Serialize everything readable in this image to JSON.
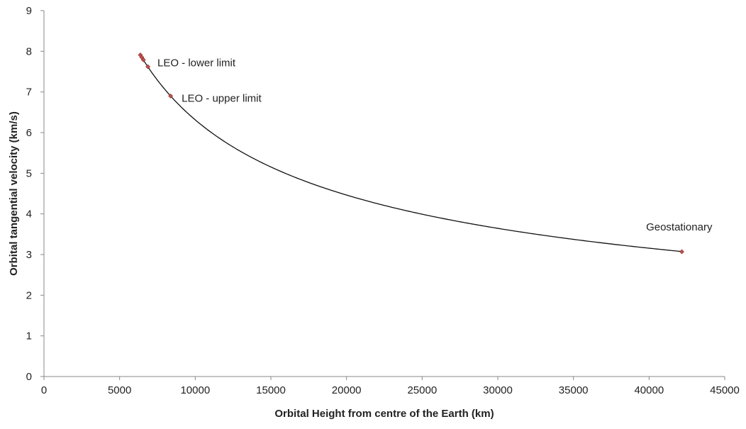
{
  "chart_data": {
    "type": "scatter",
    "title": "",
    "xlabel": "Orbital Height from centre of the Earth (km)",
    "ylabel": "Orbital tangential velocity (km/s)",
    "xlim": [
      0,
      45000
    ],
    "ylim": [
      0,
      9
    ],
    "x_ticks": [
      0,
      5000,
      10000,
      15000,
      20000,
      25000,
      30000,
      35000,
      40000,
      45000
    ],
    "y_ticks": [
      0,
      1,
      2,
      3,
      4,
      5,
      6,
      7,
      8,
      9
    ],
    "x_tick_labels": [
      "0",
      "5000",
      "10000",
      "15000",
      "20000",
      "25000",
      "30000",
      "35000",
      "40000",
      "45000"
    ],
    "y_tick_labels": [
      "0",
      "1",
      "2",
      "3",
      "4",
      "5",
      "6",
      "7",
      "8",
      "9"
    ],
    "grid": false,
    "legend": "none",
    "points": [
      {
        "x": 6371,
        "y": 7.91
      },
      {
        "x": 6471,
        "y": 7.85
      },
      {
        "x": 6571,
        "y": 7.79
      },
      {
        "x": 6871,
        "y": 7.62
      },
      {
        "x": 8371,
        "y": 6.9
      },
      {
        "x": 42164,
        "y": 3.07
      }
    ],
    "trend_curve": {
      "form": "y = k / sqrt(x)",
      "k": 631.3,
      "x_range": [
        6371,
        42164
      ]
    },
    "annotations": [
      {
        "text": "LEO - lower limit",
        "x": 7500,
        "y": 7.72
      },
      {
        "text": "LEO - upper limit",
        "x": 9100,
        "y": 6.85
      },
      {
        "text": "Geostationary",
        "x": 39800,
        "y": 3.68
      }
    ],
    "colors": {
      "curve": "#111111",
      "marker": "#c0504d",
      "axis": "#888888"
    }
  }
}
